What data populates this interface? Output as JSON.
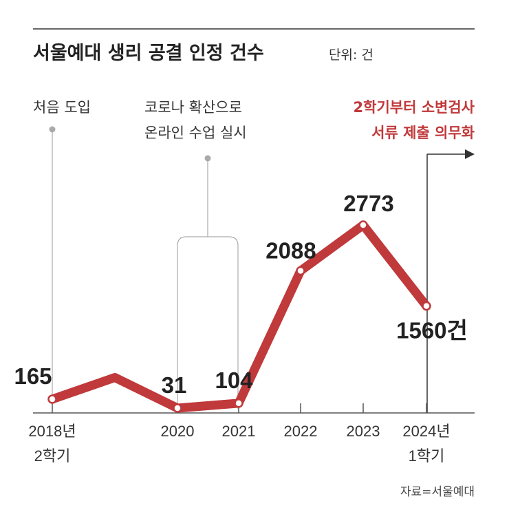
{
  "title": "서울예대 생리 공결 인정 건수",
  "unit": "단위: 건",
  "annotations": {
    "intro": "처음 도입",
    "covid_line1": "코로나 확산으로",
    "covid_line2": "온라인 수업 실시",
    "policy_line1": "2학기부터 소변검사",
    "policy_line2": "서류 제출 의무화"
  },
  "source": "자료=서울예대",
  "colors": {
    "line": "#c0393b",
    "text": "#222222",
    "axis": "#555555",
    "accent": "#c0393b"
  },
  "chart_data": {
    "type": "line",
    "title": "서울예대 생리 공결 인정 건수",
    "ylabel": "단위: 건",
    "x_ticks": [
      {
        "line1": "2018년",
        "line2": "2학기"
      },
      {
        "line1": "2020",
        "line2": ""
      },
      {
        "line1": "2021",
        "line2": ""
      },
      {
        "line1": "2022",
        "line2": ""
      },
      {
        "line1": "2023",
        "line2": ""
      },
      {
        "line1": "2024년",
        "line2": "1학기"
      }
    ],
    "points": [
      {
        "period": "2018-2",
        "value": 165,
        "label": "165"
      },
      {
        "period": "2019",
        "value": 490,
        "label": ""
      },
      {
        "period": "2020",
        "value": 31,
        "label": "31"
      },
      {
        "period": "2021",
        "value": 104,
        "label": "104"
      },
      {
        "period": "2022",
        "value": 2088,
        "label": "2088"
      },
      {
        "period": "2023",
        "value": 2773,
        "label": "2773"
      },
      {
        "period": "2024-1",
        "value": 1560,
        "label": "1560건"
      }
    ],
    "grid": false,
    "legend": "none"
  }
}
